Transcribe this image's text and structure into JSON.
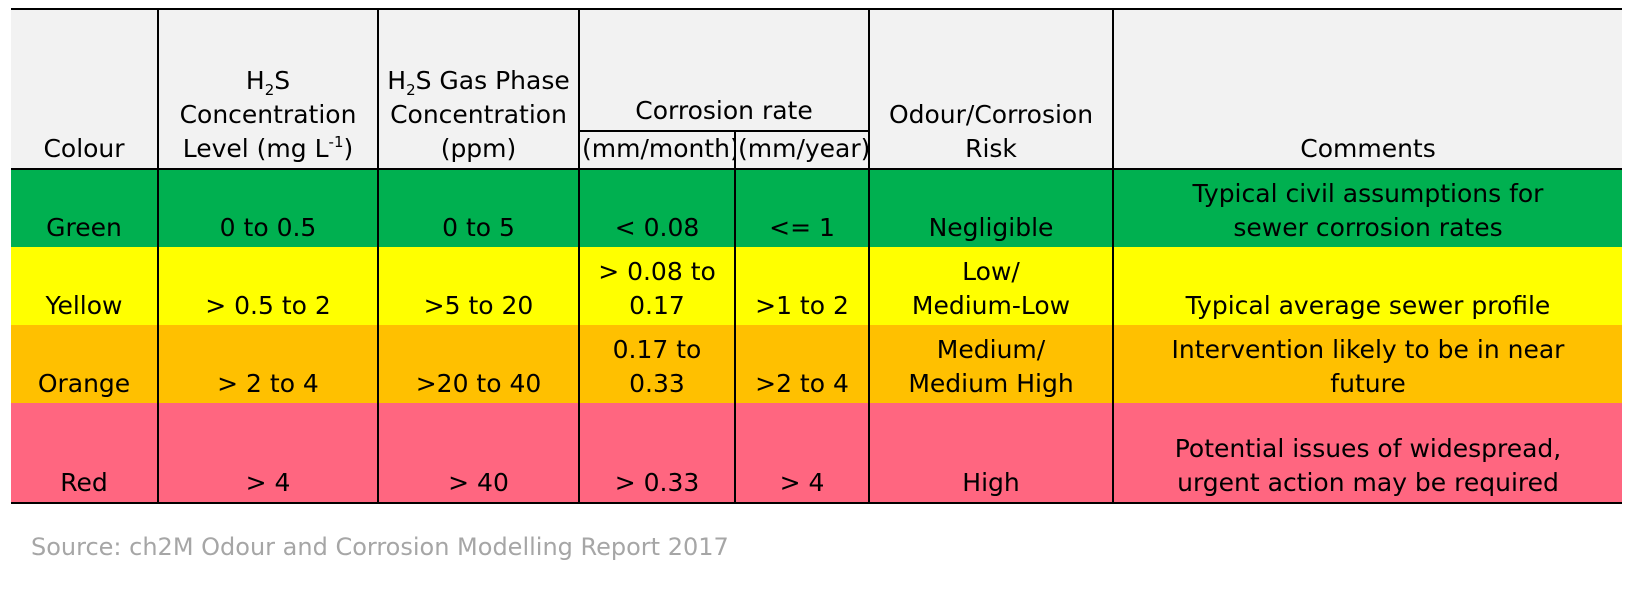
{
  "colors": {
    "green": "#00b050",
    "yellow": "#ffff00",
    "orange": "#ffc000",
    "red": "#ff6680",
    "header_bg": "#f2f2f2",
    "source_text": "#a6a6a6"
  },
  "table": {
    "headers": {
      "colour": "Colour",
      "h2s_conc_prefix": "H",
      "h2s_conc_sub": "2",
      "h2s_conc_suffix": "S",
      "h2s_conc_line2": "Concentration",
      "h2s_conc_line3_pre": "Level (mg L",
      "h2s_conc_line3_sup": "-1",
      "h2s_conc_line3_post": ")",
      "gas_prefix": "H",
      "gas_sub": "2",
      "gas_suffix": "S Gas Phase",
      "gas_line2": "Concentration",
      "gas_line3": "(ppm)",
      "corrosion_rate": "Corrosion rate",
      "per_month": "(mm/month)",
      "per_year": "(mm/year)",
      "risk_line1": "Odour/Corrosion",
      "risk_line2": "Risk",
      "comments": "Comments"
    },
    "rows": [
      {
        "colour": "Green",
        "level": "0 to 0.5",
        "gas": "0 to 5",
        "month": "< 0.08",
        "year": "<= 1",
        "risk_line1": "",
        "risk_line2": "Negligible",
        "comment_line1": "Typical civil assumptions for",
        "comment_line2": "sewer corrosion rates"
      },
      {
        "colour": "Yellow",
        "level": "> 0.5 to 2",
        "gas": ">5 to 20",
        "month_line1": "> 0.08 to",
        "month_line2": "0.17",
        "year": ">1 to 2",
        "risk_line1": "Low/",
        "risk_line2": "Medium-Low",
        "comment_line1": "",
        "comment_line2": "Typical average sewer profile"
      },
      {
        "colour": "Orange",
        "level": "> 2 to 4",
        "gas": ">20 to 40",
        "month": "0.17 to 0.33",
        "year": ">2 to 4",
        "risk_line1": "Medium/",
        "risk_line2": "Medium High",
        "comment_line1": "Intervention likely to be in near",
        "comment_line2": "future"
      },
      {
        "colour": "Red",
        "level": "> 4",
        "gas": "> 40",
        "month": "> 0.33",
        "year": "> 4",
        "risk_line1": "",
        "risk_line2": "High",
        "comment_line1": "Potential issues of widespread,",
        "comment_line2": "urgent action may be required"
      }
    ]
  },
  "source": "Source: ch2M Odour and Corrosion Modelling Report 2017"
}
